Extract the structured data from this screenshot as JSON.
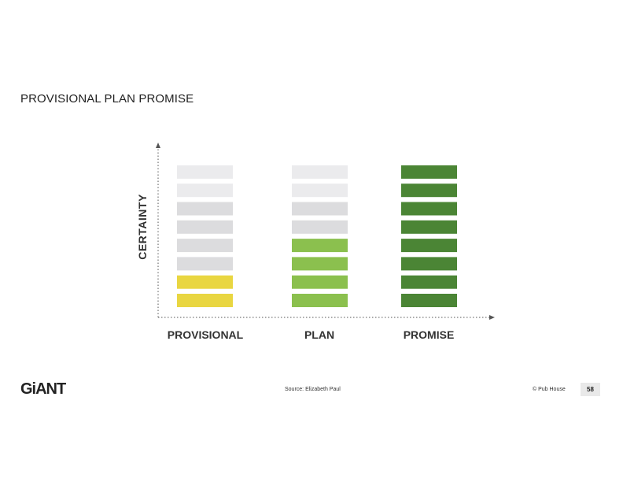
{
  "title": "PROVISIONAL PLAN PROMISE",
  "chart_data": {
    "type": "bar",
    "ylabel": "CERTAINTY",
    "categories": [
      "PROVISIONAL",
      "PLAN",
      "PROMISE"
    ],
    "segments_per_column": 8,
    "columns": [
      {
        "label": "PROVISIONAL",
        "filled_segments": 2,
        "fill_color": "#e9d641"
      },
      {
        "label": "PLAN",
        "filled_segments": 4,
        "fill_color": "#8bc04e"
      },
      {
        "label": "PROMISE",
        "filled_segments": 8,
        "fill_color": "#4b8535"
      }
    ],
    "empty_colors": {
      "light": "#ebebed",
      "dark": "#dcdcde"
    }
  },
  "footer": {
    "logo": "GiANT",
    "source": "Source: Elizabeth Paul",
    "copyright": "© Pub House",
    "page": "58"
  }
}
